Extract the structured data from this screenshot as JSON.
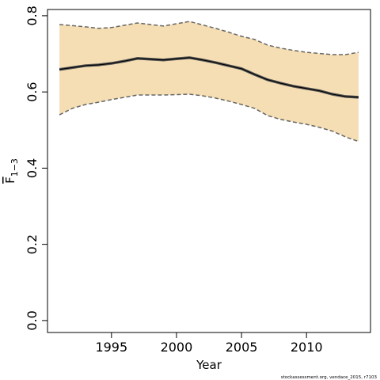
{
  "chart_data": {
    "type": "line",
    "xlabel": "Year",
    "ylabel": {
      "text": "F",
      "subscript": "1−3"
    },
    "footer": "stockassessment.org, vendace_2015, r7103",
    "x": [
      1991,
      1992,
      1993,
      1994,
      1995,
      1996,
      1997,
      1998,
      1999,
      2000,
      2001,
      2002,
      2003,
      2004,
      2005,
      2006,
      2007,
      2008,
      2009,
      2010,
      2011,
      2012,
      2013,
      2014
    ],
    "values": [
      0.659,
      0.664,
      0.669,
      0.671,
      0.675,
      0.681,
      0.688,
      0.686,
      0.684,
      0.687,
      0.69,
      0.684,
      0.677,
      0.669,
      0.661,
      0.646,
      0.632,
      0.623,
      0.615,
      0.609,
      0.603,
      0.594,
      0.588,
      0.586
    ],
    "upper": [
      0.777,
      0.774,
      0.771,
      0.767,
      0.769,
      0.775,
      0.781,
      0.777,
      0.773,
      0.779,
      0.785,
      0.776,
      0.767,
      0.757,
      0.746,
      0.738,
      0.723,
      0.715,
      0.709,
      0.704,
      0.701,
      0.698,
      0.698,
      0.704
    ],
    "lower": [
      0.54,
      0.557,
      0.567,
      0.573,
      0.58,
      0.586,
      0.592,
      0.592,
      0.592,
      0.593,
      0.594,
      0.59,
      0.584,
      0.576,
      0.567,
      0.557,
      0.538,
      0.528,
      0.521,
      0.515,
      0.507,
      0.497,
      0.482,
      0.47
    ],
    "color": "#000000",
    "band_color": "#f5deb3",
    "bound_color": "#666666",
    "xlim": [
      1990.08,
      2014.92
    ],
    "ylim": [
      -0.0314,
      0.8164
    ],
    "xticks": [
      1995,
      2000,
      2005,
      2010
    ],
    "yticks": [
      {
        "value": 0,
        "label": "0.0"
      },
      0.2,
      0.4,
      0.6,
      0.8
    ]
  }
}
